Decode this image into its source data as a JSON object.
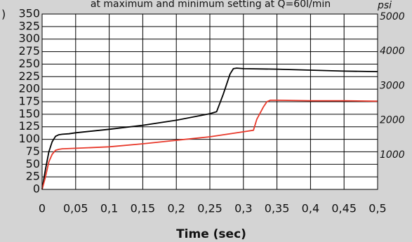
{
  "chart_data": {
    "type": "line",
    "title": "at maximum and minimum setting at Q=60l/min",
    "panel_label": ")",
    "xlabel": "Time (sec)",
    "ylabel": "",
    "xlim": [
      0,
      0.5
    ],
    "ylim": [
      0,
      350
    ],
    "x_ticks": [
      "0",
      "0,05",
      "0,1",
      "0,15",
      "0,2",
      "0,25",
      "0,3",
      "0,35",
      "0,4",
      "0,45",
      "0,5"
    ],
    "y_ticks": [
      "0",
      "25",
      "50",
      "75",
      "100",
      "125",
      "150",
      "175",
      "200",
      "225",
      "250",
      "275",
      "300",
      "325",
      "350"
    ],
    "secondary_y": {
      "unit": "psi",
      "ticks": [
        "1000",
        "2000",
        "3000",
        "4000",
        "5000"
      ],
      "tick_values_primary": [
        68.9,
        137.9,
        206.8,
        275.8,
        344.7
      ]
    },
    "grid": true,
    "legend": "none",
    "series": [
      {
        "color": "#000000",
        "x": [
          0,
          0.005,
          0.01,
          0.015,
          0.02,
          0.025,
          0.03,
          0.04,
          0.05,
          0.1,
          0.15,
          0.2,
          0.25,
          0.26,
          0.27,
          0.28,
          0.285,
          0.29,
          0.3,
          0.35,
          0.4,
          0.45,
          0.5
        ],
        "values": [
          0,
          40,
          75,
          95,
          106,
          109,
          110,
          111,
          113,
          120,
          128,
          138,
          151,
          155,
          190,
          230,
          241,
          242,
          241,
          240,
          238,
          236,
          235
        ]
      },
      {
        "color": "#e8392b",
        "x": [
          0,
          0.005,
          0.01,
          0.015,
          0.02,
          0.025,
          0.03,
          0.05,
          0.1,
          0.15,
          0.2,
          0.25,
          0.3,
          0.315,
          0.32,
          0.33,
          0.335,
          0.34,
          0.35,
          0.4,
          0.45,
          0.5
        ],
        "values": [
          0,
          25,
          55,
          70,
          78,
          80,
          81,
          82,
          85,
          91,
          98,
          105,
          115,
          118,
          140,
          165,
          175,
          178,
          178,
          177,
          177,
          176
        ]
      }
    ],
    "colors": {
      "background": "#d4d4d4",
      "plot_background": "#ffffff",
      "grid": "#000000",
      "series_1": "#000000",
      "series_2": "#e8392b"
    }
  }
}
